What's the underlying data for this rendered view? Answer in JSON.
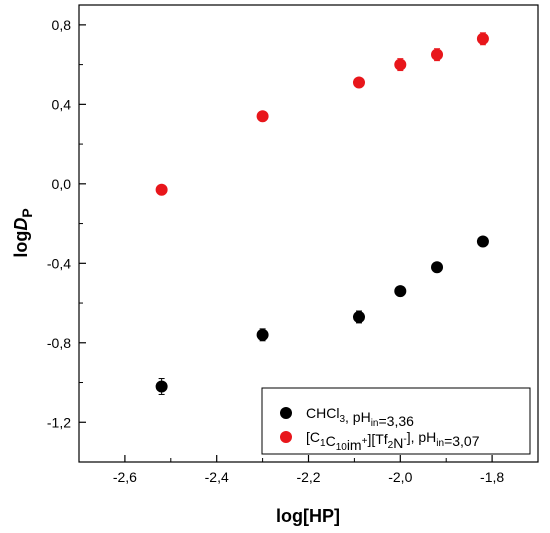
{
  "chart_data": {
    "type": "scatter",
    "xlabel": "log[HP]",
    "ylabel": {
      "prefix": "log",
      "symbol": "D",
      "subscript": "P"
    },
    "xlim": [
      -2.7,
      -1.7
    ],
    "ylim": [
      -1.4,
      0.9
    ],
    "x_ticks": [
      -2.6,
      -2.4,
      -2.2,
      -2.0,
      -1.8
    ],
    "x_tick_labels": [
      "-2,6",
      "-2,4",
      "-2,2",
      "-2,0",
      "-1,8"
    ],
    "y_ticks": [
      -1.2,
      -0.8,
      -0.4,
      0.0,
      0.4,
      0.8
    ],
    "y_tick_labels": [
      "-1,2",
      "-0,8",
      "-0,4",
      "0,0",
      "0,4",
      "0,8"
    ],
    "grid": false,
    "legend_position": "bottom-right",
    "series": [
      {
        "name": "CHCl3, pHin=3,36",
        "legend_parts": [
          {
            "t": "CHCl"
          },
          {
            "t": "3",
            "s": "sub"
          },
          {
            "t": ", pH"
          },
          {
            "t": "in",
            "s": "sub"
          },
          {
            "t": "=3,36"
          }
        ],
        "color": "#000000",
        "x": [
          -2.52,
          -2.3,
          -2.09,
          -2.0,
          -1.92,
          -1.82
        ],
        "y": [
          -1.02,
          -0.76,
          -0.67,
          -0.54,
          -0.42,
          -0.29
        ],
        "err": [
          0.04,
          0.03,
          0.03,
          0.02,
          0.02,
          0.02
        ]
      },
      {
        "name": "[C1C10im+][Tf2N-], pHin=3,07",
        "legend_parts": [
          {
            "t": "[C"
          },
          {
            "t": "1",
            "s": "sub"
          },
          {
            "t": "C"
          },
          {
            "t": "10",
            "s": "sub"
          },
          {
            "t": "im"
          },
          {
            "t": "+",
            "s": "sup"
          },
          {
            "t": "][Tf"
          },
          {
            "t": "2",
            "s": "sub"
          },
          {
            "t": "N"
          },
          {
            "t": "-",
            "s": "sup"
          },
          {
            "t": "], pH"
          },
          {
            "t": "in",
            "s": "sub"
          },
          {
            "t": "=3,07"
          }
        ],
        "color": "#e8161b",
        "x": [
          -2.52,
          -2.3,
          -2.09,
          -2.0,
          -1.92,
          -1.82
        ],
        "y": [
          -0.03,
          0.34,
          0.51,
          0.6,
          0.65,
          0.73
        ],
        "err": [
          0.01,
          0.01,
          0.02,
          0.03,
          0.03,
          0.03
        ]
      }
    ]
  }
}
